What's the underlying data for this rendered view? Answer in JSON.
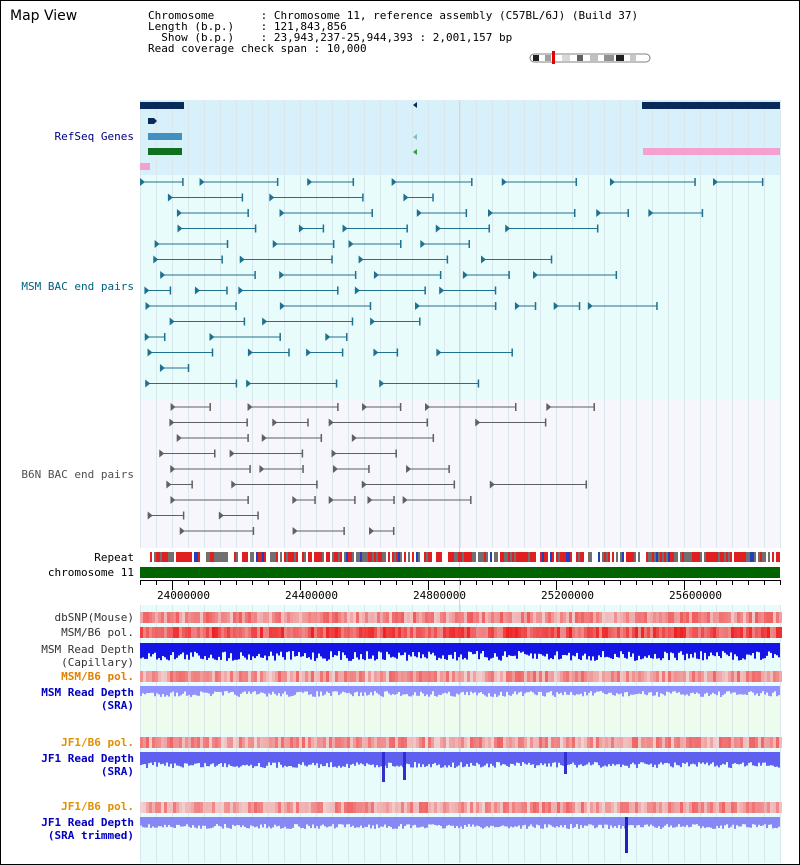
{
  "app": {
    "title": "Map View"
  },
  "info": {
    "chromosome_label": "Chromosome",
    "chromosome_value": "Chromosome 11, reference assembly (C57BL/6J) (Build 37)",
    "length_label": "Length (b.p.)",
    "length_value": "121,843,856",
    "show_label": "Show (b.p.)",
    "show_value": "23,943,237-25,944,393 : 2,001,157 bp",
    "span_label": "Read coverage check span",
    "span_value": "10,000"
  },
  "tracks": {
    "refseq": {
      "label": "RefSeq Genes",
      "color": "#000080"
    },
    "msm_bac": {
      "label": "MSM BAC end pairs",
      "color": "#006080"
    },
    "b6n_bac": {
      "label": "B6N BAC end pairs",
      "color": "#505050"
    },
    "repeat": {
      "label": "Repeat"
    },
    "chromosome": {
      "label": "chromosome 11"
    },
    "dbsnp": {
      "label": "dbSNP(Mouse)"
    },
    "msm_b6_pol_1": {
      "label": "MSM/B6 pol."
    },
    "msm_depth_cap": {
      "label_1": "MSM Read Depth",
      "label_2": "(Capillary)"
    },
    "msm_b6_pol_2": {
      "label": "MSM/B6 pol.",
      "color": "#e08000"
    },
    "msm_depth_sra": {
      "label_1": "MSM Read Depth",
      "label_2": "(SRA)",
      "color": "#0000c0"
    },
    "jf1_b6_pol_1": {
      "label": "JF1/B6 pol.",
      "color": "#e09000"
    },
    "jf1_depth_sra": {
      "label_1": "JF1 Read Depth",
      "label_2": "(SRA)",
      "color": "#0000c0"
    },
    "jf1_b6_pol_2": {
      "label": "JF1/B6 pol.",
      "color": "#e09000"
    },
    "jf1_depth_trim": {
      "label_1": "JF1 Read Depth",
      "label_2": "(SRA trimmed)",
      "color": "#0000c0"
    }
  },
  "ruler": {
    "ticks": [
      "24000000",
      "24400000",
      "24800000",
      "25200000",
      "25600000"
    ]
  },
  "colors": {
    "refseq_bg": "#d8f0fa",
    "bac_bg": "#e8fcfc",
    "b6n_bg": "#f6f6fc",
    "chromosome_bar": "#006400",
    "depth_blue": "#1414e6",
    "depth_light": "#9090ff"
  }
}
